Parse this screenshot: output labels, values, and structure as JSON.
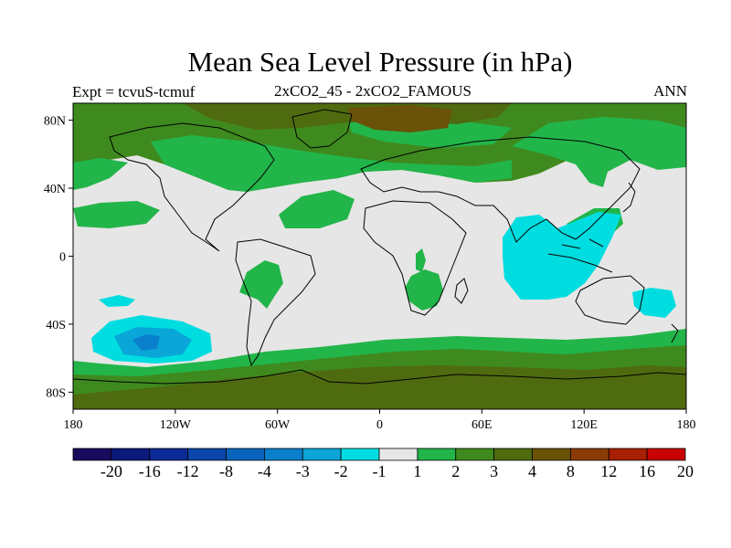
{
  "title": "Mean Sea Level Pressure (in hPa)",
  "subtitle_left": "Expt = tcvuS-tcmuf",
  "subtitle_center": "2xCO2_45 - 2xCO2_FAMOUS",
  "subtitle_right": "ANN",
  "lat_ticks": [
    {
      "value": 80,
      "label": "80N"
    },
    {
      "value": 40,
      "label": "40N"
    },
    {
      "value": 0,
      "label": "0"
    },
    {
      "value": -40,
      "label": "40S"
    },
    {
      "value": -80,
      "label": "80S"
    }
  ],
  "lon_ticks": [
    {
      "value": -180,
      "label": "180"
    },
    {
      "value": -120,
      "label": "120W"
    },
    {
      "value": -60,
      "label": "60W"
    },
    {
      "value": 0,
      "label": "0"
    },
    {
      "value": 60,
      "label": "60E"
    },
    {
      "value": 120,
      "label": "120E"
    },
    {
      "value": 180,
      "label": "180"
    }
  ],
  "colorbar": {
    "labels": [
      "-20",
      "-16",
      "-12",
      "-8",
      "-4",
      "-3",
      "-2",
      "-1",
      "1",
      "2",
      "3",
      "4",
      "8",
      "12",
      "16",
      "20"
    ],
    "colors": [
      "#1a0a5e",
      "#0a1a7a",
      "#0a2a96",
      "#0a45aa",
      "#0a64be",
      "#0a80cc",
      "#0aa6d8",
      "#00dde0",
      "#e6e6e6",
      "#22b54a",
      "#3f8a1e",
      "#4f6b10",
      "#6a5208",
      "#8a3c06",
      "#a82004",
      "#c80000"
    ]
  }
}
